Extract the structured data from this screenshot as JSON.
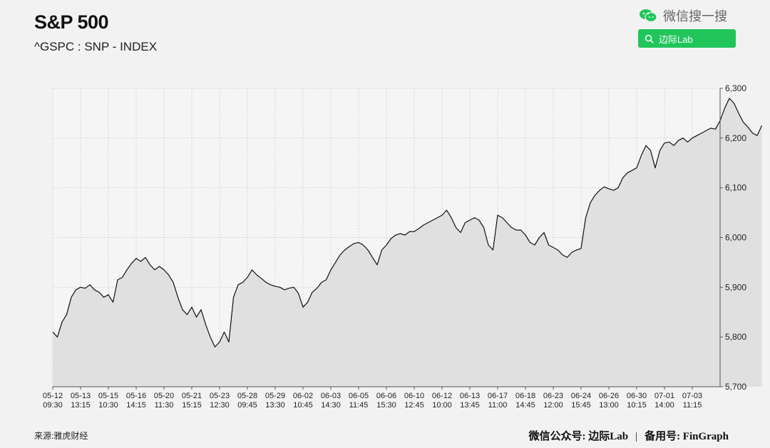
{
  "header": {
    "title": "S&P 500",
    "subtitle": "^GSPC : SNP - INDEX"
  },
  "wechat": {
    "search_text": "微信搜一搜",
    "button_label": "边际Lab",
    "accent": "#21c55a"
  },
  "source": "来源:雅虎财经",
  "footer": {
    "account_label": "微信公众号: 边际Lab",
    "separator": "|",
    "backup_label": "备用号: FinGraph"
  },
  "chart_data": {
    "type": "area",
    "title": "S&P 500",
    "subtitle": "^GSPC : SNP - INDEX",
    "y_axis_side": "right",
    "ylim": [
      5700,
      6300
    ],
    "yticks": [
      5700,
      5800,
      5900,
      6000,
      6100,
      6200,
      6300
    ],
    "ytick_labels": [
      "5,700",
      "5,800",
      "5,900",
      "6,000",
      "6,100",
      "6,200",
      "6,300"
    ],
    "x_tick_labels": [
      [
        "05-12",
        "09:30"
      ],
      [
        "05-13",
        "13:15"
      ],
      [
        "05-15",
        "10:30"
      ],
      [
        "05-16",
        "14:15"
      ],
      [
        "05-20",
        "11:30"
      ],
      [
        "05-21",
        "15:15"
      ],
      [
        "05-23",
        "12:30"
      ],
      [
        "05-28",
        "09:45"
      ],
      [
        "05-29",
        "13:30"
      ],
      [
        "06-02",
        "10:45"
      ],
      [
        "06-03",
        "14:30"
      ],
      [
        "06-05",
        "11:45"
      ],
      [
        "06-06",
        "15:30"
      ],
      [
        "06-10",
        "12:45"
      ],
      [
        "06-12",
        "10:00"
      ],
      [
        "06-13",
        "13:45"
      ],
      [
        "06-17",
        "11:00"
      ],
      [
        "06-18",
        "14:45"
      ],
      [
        "06-23",
        "12:00"
      ],
      [
        "06-24",
        "15:45"
      ],
      [
        "06-26",
        "13:00"
      ],
      [
        "06-30",
        "10:15"
      ],
      [
        "07-01",
        "14:00"
      ],
      [
        "07-03",
        "11:15"
      ]
    ],
    "grid": true,
    "line_color": "#111111",
    "fill_color": "#e0e0e0",
    "points_per_tick": 6,
    "values": [
      5810,
      5800,
      5830,
      5845,
      5880,
      5895,
      5900,
      5898,
      5905,
      5895,
      5890,
      5880,
      5885,
      5870,
      5915,
      5920,
      5935,
      5948,
      5958,
      5952,
      5960,
      5945,
      5935,
      5942,
      5935,
      5925,
      5910,
      5880,
      5855,
      5845,
      5860,
      5840,
      5855,
      5825,
      5800,
      5780,
      5790,
      5810,
      5790,
      5880,
      5905,
      5910,
      5920,
      5935,
      5925,
      5918,
      5910,
      5905,
      5902,
      5900,
      5895,
      5898,
      5900,
      5888,
      5860,
      5870,
      5890,
      5898,
      5910,
      5915,
      5935,
      5950,
      5965,
      5975,
      5982,
      5988,
      5990,
      5985,
      5975,
      5960,
      5945,
      5975,
      5985,
      5998,
      6005,
      6008,
      6005,
      6012,
      6012,
      6018,
      6025,
      6030,
      6035,
      6040,
      6045,
      6055,
      6040,
      6020,
      6010,
      6030,
      6035,
      6040,
      6035,
      6020,
      5985,
      5975,
      6045,
      6040,
      6030,
      6020,
      6015,
      6015,
      6005,
      5990,
      5985,
      6000,
      6010,
      5985,
      5980,
      5975,
      5965,
      5960,
      5970,
      5975,
      5978,
      6040,
      6070,
      6085,
      6095,
      6102,
      6098,
      6095,
      6100,
      6120,
      6130,
      6135,
      6140,
      6165,
      6185,
      6175,
      6140,
      6175,
      6190,
      6192,
      6185,
      6195,
      6200,
      6192,
      6200,
      6205,
      6210,
      6215,
      6220,
      6218,
      6235,
      6260,
      6280,
      6270,
      6250,
      6232,
      6222,
      6210,
      6205,
      6225
    ]
  }
}
